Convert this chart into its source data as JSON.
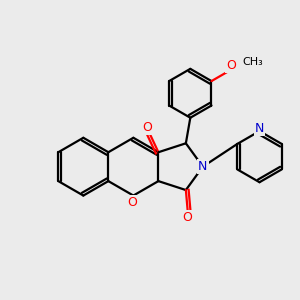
{
  "bg_color": "#ebebeb",
  "bond_color": "#000000",
  "oxygen_color": "#ff0000",
  "nitrogen_color": "#0000cc",
  "line_width": 1.6,
  "figsize": [
    3.0,
    3.0
  ],
  "dpi": 100,
  "xlim": [
    -2.5,
    2.8
  ],
  "ylim": [
    -2.0,
    2.5
  ]
}
